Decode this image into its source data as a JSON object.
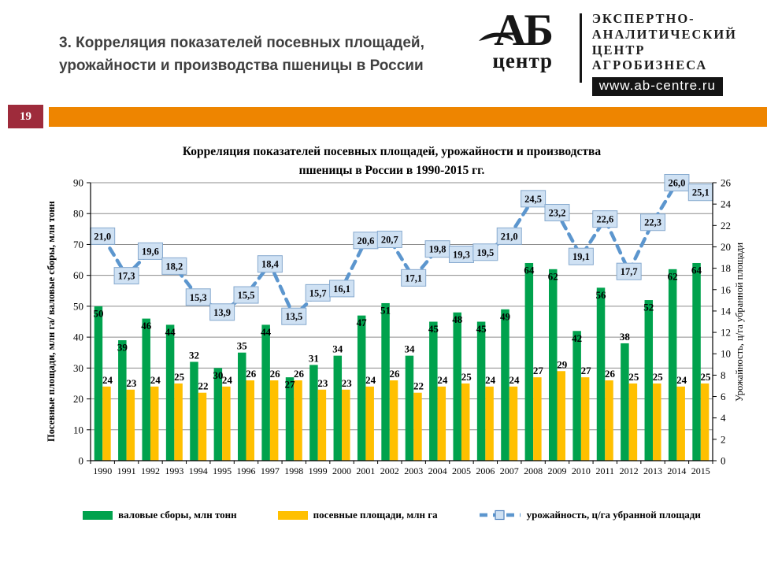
{
  "page": {
    "number": "19",
    "accent_color": "#EE8500",
    "page_box_color": "#9E2B3B"
  },
  "header": {
    "title": [
      "3. Корреляция показателей посевных площадей,",
      "урожайности и производства пшеницы в России"
    ],
    "logo": {
      "abbr": "АБ",
      "sub": "центр",
      "org_lines": [
        "ЭКСПЕРТНО-",
        "АНАЛИТИЧЕСКИЙ",
        "ЦЕНТР",
        "АГРОБИЗНЕСА"
      ],
      "site": "www.ab-centre.ru"
    }
  },
  "chart_data": {
    "type": "bar",
    "title": [
      "Корреляция показателей посевных площадей, урожайности и производства",
      "пшеницы в России в 1990-2015 гг."
    ],
    "categories": [
      1990,
      1991,
      1992,
      1993,
      1994,
      1995,
      1996,
      1997,
      1998,
      1999,
      2000,
      2001,
      2002,
      2003,
      2004,
      2005,
      2006,
      2007,
      2008,
      2009,
      2010,
      2011,
      2012,
      2013,
      2014,
      2015
    ],
    "series": [
      {
        "name": "валовые  сборы,  млн тонн",
        "type": "bar",
        "axis": "left",
        "color": "#00A24D",
        "values": [
          50,
          39,
          46,
          44,
          32,
          30,
          35,
          44,
          27,
          31,
          34,
          47,
          51,
          34,
          45,
          48,
          45,
          49,
          64,
          62,
          42,
          56,
          38,
          52,
          62,
          64
        ]
      },
      {
        "name": "посевные  площади,  млн га",
        "type": "bar",
        "axis": "left",
        "color": "#FFC000",
        "values": [
          24,
          23,
          24,
          25,
          22,
          24,
          26,
          26,
          26,
          23,
          23,
          24,
          26,
          22,
          24,
          25,
          24,
          24,
          27,
          29,
          27,
          26,
          25,
          25,
          24,
          25
        ]
      },
      {
        "name": "урожайность,  ц/га убранной  площади",
        "type": "line",
        "axis": "right",
        "color": "#5C96CE",
        "values": [
          21.0,
          17.3,
          19.6,
          18.2,
          15.3,
          13.9,
          15.5,
          18.4,
          13.5,
          15.7,
          16.1,
          20.6,
          20.7,
          17.1,
          19.8,
          19.3,
          19.5,
          21.0,
          24.5,
          23.2,
          19.1,
          22.6,
          17.7,
          22.3,
          26.0,
          25.1
        ],
        "value_labels": [
          "21,0",
          "17,3",
          "19,6",
          "18,2",
          "15,3",
          "13,9",
          "15,5",
          "18,4",
          "13,5",
          "15,7",
          "16,1",
          "20,6",
          "20,7",
          "17,1",
          "19,8",
          "19,3",
          "19,5",
          "21,0",
          "24,5",
          "23,2",
          "19,1",
          "22,6",
          "17,7",
          "22,3",
          "26,0",
          "25,1"
        ],
        "label_box_fill": "#CFE1F3",
        "label_box_border": "#86A9CE"
      }
    ],
    "left_axis": {
      "title": "Посевные площади, млн га/ валовые сборы, млн тонн",
      "min": 0,
      "max": 90,
      "step": 10
    },
    "right_axis": {
      "title": "Урожайность, ц/га убранной  площади",
      "min": 0,
      "max": 26,
      "step": 2
    },
    "grid": true,
    "grid_color": "#8C8C8C",
    "legend_position": "bottom"
  }
}
